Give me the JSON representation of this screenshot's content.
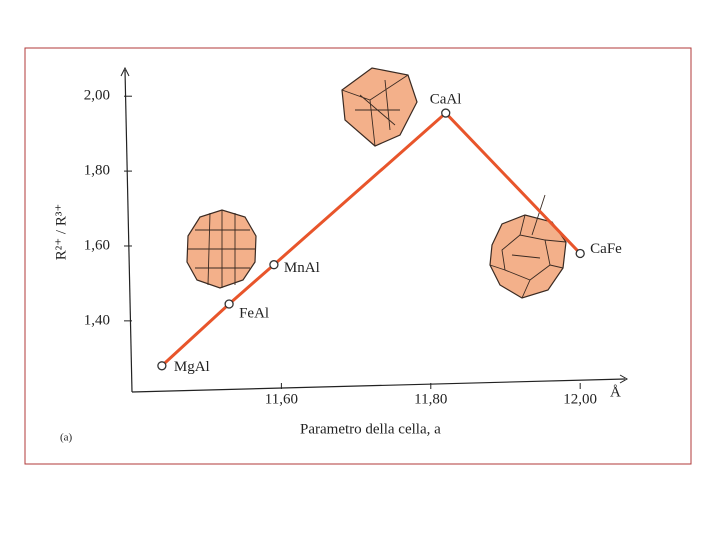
{
  "chart_data": {
    "type": "line",
    "x": [
      11.44,
      11.53,
      11.59,
      11.82,
      12.0
    ],
    "series": [
      {
        "values": [
          1.28,
          1.445,
          1.55,
          1.955,
          1.58
        ],
        "color": "#e8552b"
      }
    ],
    "point_labels": [
      "MgAl",
      "FeAl",
      "MnAl",
      "CaAl",
      "CaFe"
    ],
    "xlabel": "Parametro della cella, a",
    "ylabel": "R²⁺ / R³⁺",
    "x_unit": "Å",
    "panel_label": "(a)",
    "xlim": [
      11.4,
      12.06
    ],
    "ylim": [
      1.21,
      2.07
    ],
    "xticks": [
      {
        "value": 11.6,
        "label": "11,60"
      },
      {
        "value": 11.8,
        "label": "11,80"
      },
      {
        "value": 12.0,
        "label": "12,00"
      }
    ],
    "yticks": [
      {
        "value": 1.4,
        "label": "1,40"
      },
      {
        "value": 1.6,
        "label": "1,60"
      },
      {
        "value": 1.8,
        "label": "1,80"
      },
      {
        "value": 2.0,
        "label": "2,00"
      }
    ],
    "grid": false
  }
}
